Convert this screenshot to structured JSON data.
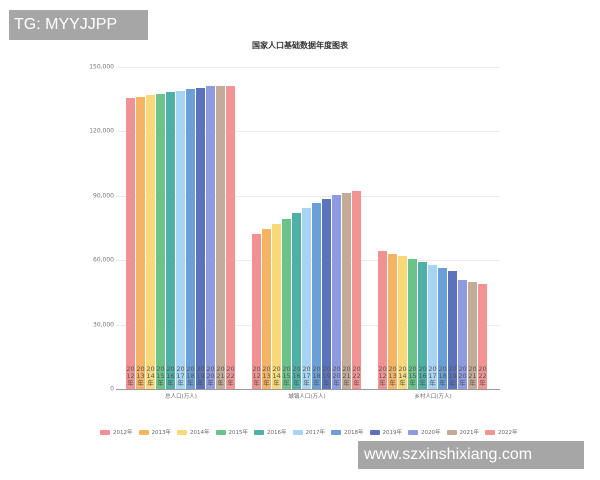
{
  "watermarks": {
    "top_left": "TG: MYYJJPP",
    "bottom_right": "www.szxinshixiang.com"
  },
  "chart_data": {
    "type": "bar",
    "title": "国家人口基础数据年度图表",
    "xlabel": "",
    "ylabel": "",
    "ylim": [
      0,
      150000
    ],
    "yticks": [
      "0",
      "30,000",
      "60,000",
      "90,000",
      "120,000",
      "150,000"
    ],
    "grid": true,
    "legend_position": "bottom",
    "categories": [
      "总人口(万人)",
      "城镇人口(万人)",
      "乡村人口(万人)"
    ],
    "series": [
      {
        "name": "2012年",
        "color": "#f29191",
        "values": [
          135404,
          72175,
          64222
        ]
      },
      {
        "name": "2013年",
        "color": "#f5b464",
        "values": [
          136072,
          74502,
          62961
        ]
      },
      {
        "name": "2014年",
        "color": "#f8d97a",
        "values": [
          136782,
          76738,
          61866
        ]
      },
      {
        "name": "2015年",
        "color": "#6cc38a",
        "values": [
          137462,
          79302,
          60346
        ]
      },
      {
        "name": "2016年",
        "color": "#4fb0a8",
        "values": [
          138271,
          81924,
          58973
        ]
      },
      {
        "name": "2017年",
        "color": "#a7d3f5",
        "values": [
          139008,
          84343,
          57661
        ]
      },
      {
        "name": "2018年",
        "color": "#6b9fd8",
        "values": [
          139538,
          86433,
          56401
        ]
      },
      {
        "name": "2019年",
        "color": "#5b72bd",
        "values": [
          140005,
          88426,
          55162
        ]
      },
      {
        "name": "2020年",
        "color": "#8e9be0",
        "values": [
          141212,
          90220,
          50992
        ]
      },
      {
        "name": "2021年",
        "color": "#c4ab98",
        "values": [
          141260,
          91425,
          49835
        ]
      },
      {
        "name": "2022年",
        "color": "#f29394",
        "values": [
          141175,
          92071,
          49104
        ]
      }
    ],
    "bar_labels": [
      "2012年",
      "2013年",
      "2014年",
      "2015年",
      "2016年",
      "2017年",
      "2018年",
      "2019年",
      "2020年",
      "2021年",
      "2022年"
    ]
  }
}
